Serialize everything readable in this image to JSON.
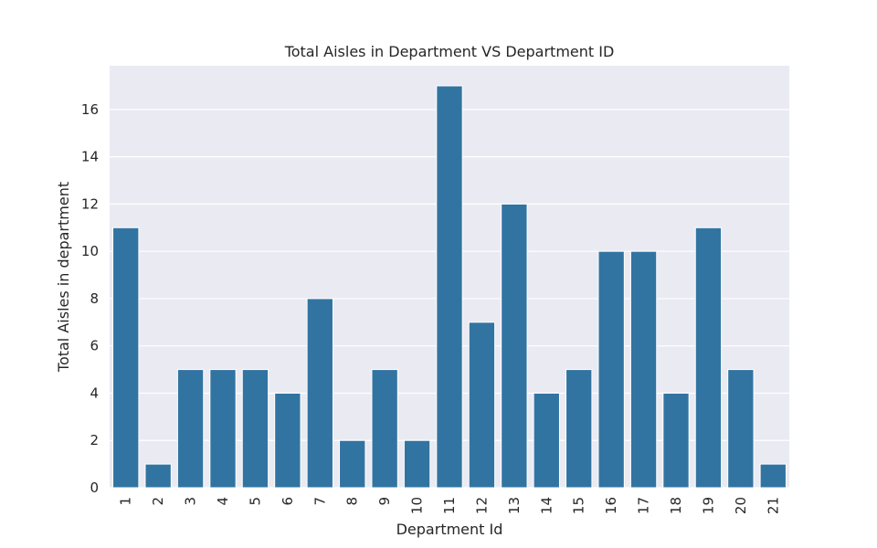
{
  "chart_data": {
    "type": "bar",
    "title": "Total Aisles in Department VS Department ID",
    "xlabel": "Department Id",
    "ylabel": "Total Aisles in department",
    "categories": [
      "1",
      "2",
      "3",
      "4",
      "5",
      "6",
      "7",
      "8",
      "9",
      "10",
      "11",
      "12",
      "13",
      "14",
      "15",
      "16",
      "17",
      "18",
      "19",
      "20",
      "21"
    ],
    "values": [
      11,
      1,
      5,
      5,
      5,
      4,
      8,
      2,
      5,
      2,
      17,
      7,
      12,
      4,
      5,
      10,
      10,
      4,
      11,
      5,
      1
    ],
    "ylim": [
      0,
      17.85
    ],
    "yticks": [
      0,
      2,
      4,
      6,
      8,
      10,
      12,
      14,
      16
    ],
    "grid": true,
    "x_tick_rotation": "vertical",
    "bar_color": "#3274a1",
    "background_color": "#eaeaf2",
    "grid_color": "#ffffff"
  }
}
